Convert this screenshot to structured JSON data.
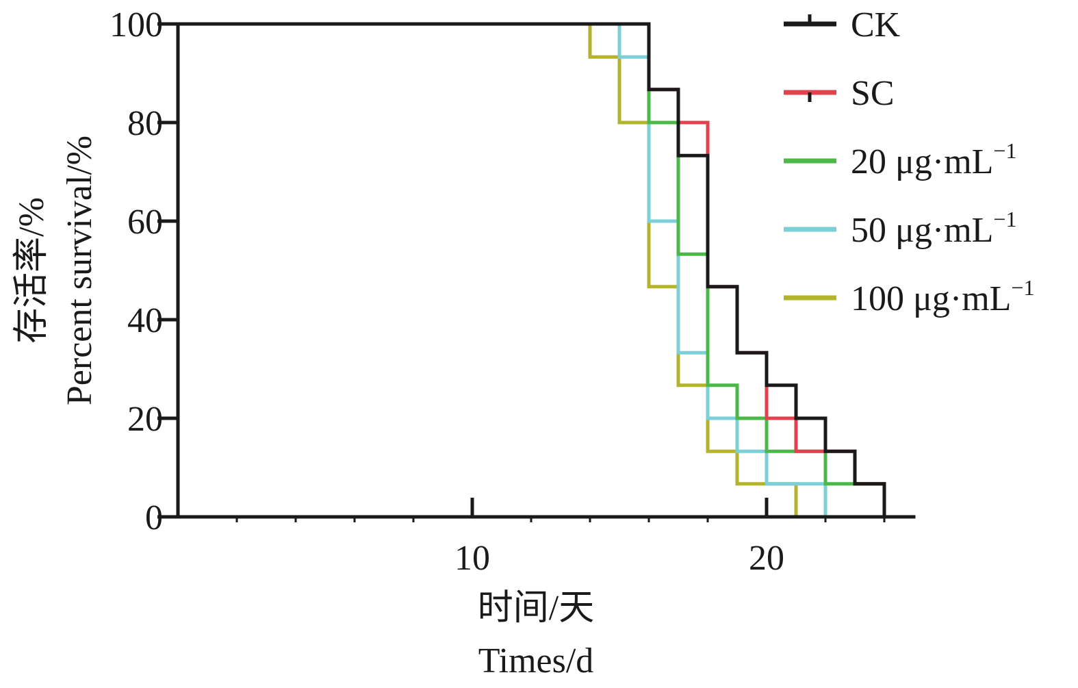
{
  "chart_data": {
    "type": "line",
    "step": true,
    "xlabel_cn": "时间/天",
    "xlabel_en": "Times/d",
    "ylabel_cn": "存活率/%",
    "ylabel_en": "Percent survival/%",
    "xlim": [
      0,
      25
    ],
    "ylim": [
      0,
      100
    ],
    "xticks": [
      10,
      20
    ],
    "yticks": [
      0,
      20,
      40,
      60,
      80,
      100
    ],
    "grid": false,
    "legend_position": "top-right",
    "series": [
      {
        "name": "CK",
        "color": "#1a1a1a",
        "x": [
          0,
          16,
          17,
          18,
          19,
          20,
          21,
          22,
          23,
          24
        ],
        "y": [
          100,
          86.7,
          73.3,
          46.7,
          33.3,
          26.7,
          20,
          13.3,
          6.7,
          0
        ]
      },
      {
        "name": "SC",
        "color": "#e0424f",
        "x": [
          0,
          16,
          17,
          18,
          19,
          20,
          21,
          22,
          23,
          24
        ],
        "y": [
          100,
          86.7,
          80,
          46.7,
          33.3,
          20,
          13.3,
          13.3,
          6.7,
          0
        ]
      },
      {
        "name": "20 μg·mL",
        "name_sup": "−1",
        "color": "#4cb84a",
        "x": [
          0,
          16,
          17,
          18,
          19,
          20,
          21,
          22,
          23
        ],
        "y": [
          100,
          80,
          53.3,
          26.7,
          20,
          13.3,
          13.3,
          6.7,
          6.7
        ]
      },
      {
        "name": "50 μg·mL",
        "name_sup": "−1",
        "color": "#7ccfd6",
        "x": [
          0,
          15,
          16,
          17,
          18,
          19,
          20,
          22
        ],
        "y": [
          100,
          93.3,
          60,
          33.3,
          20,
          13.3,
          6.7,
          0
        ]
      },
      {
        "name": "100 μg·mL",
        "name_sup": "−1",
        "color": "#b3b32e",
        "x": [
          0,
          14,
          15,
          16,
          17,
          18,
          19,
          21
        ],
        "y": [
          100,
          93.3,
          80,
          46.7,
          26.7,
          13.3,
          6.7,
          0
        ]
      }
    ]
  }
}
